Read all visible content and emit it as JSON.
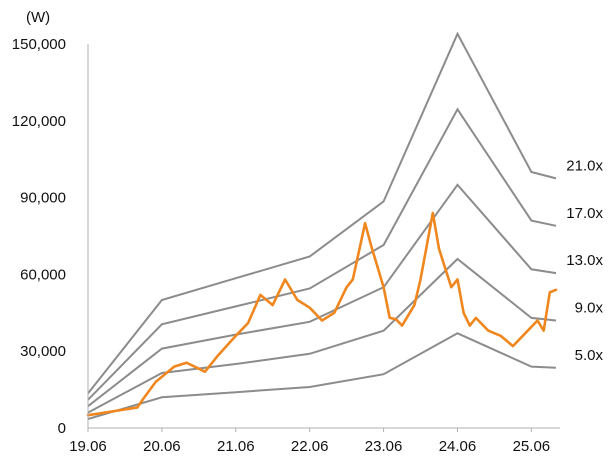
{
  "chart_data": {
    "type": "line",
    "unit_label": "(W)",
    "y_ticks": [
      "150,000",
      "120,000",
      "90,000",
      "60,000",
      "30,000",
      "0"
    ],
    "y_tick_values": [
      150000,
      120000,
      90000,
      60000,
      30000,
      0
    ],
    "x_ticks": [
      "19.06",
      "20.06",
      "21.06",
      "22.06",
      "23.06",
      "24.06",
      "25.06"
    ],
    "ylim": [
      0,
      150000
    ],
    "xlim": [
      "2019-06",
      "2025-10"
    ],
    "grid": false,
    "price_color": "#F0861E",
    "band_color": "#8C8C8C",
    "band_x": [
      "2019-06",
      "2020-06",
      "2021-06",
      "2022-06",
      "2023-06",
      "2024-06",
      "2025-06",
      "2025-10"
    ],
    "bands": [
      {
        "name": "5.0x",
        "values": [
          3500,
          12000,
          14000,
          16000,
          21000,
          37000,
          24000,
          23500
        ]
      },
      {
        "name": "9.0x",
        "values": [
          6000,
          21500,
          25000,
          29000,
          38000,
          66000,
          43000,
          42000
        ]
      },
      {
        "name": "13.0x",
        "values": [
          8500,
          31000,
          36500,
          41500,
          55000,
          95000,
          62000,
          60500
        ]
      },
      {
        "name": "17.0x",
        "values": [
          11000,
          40500,
          47500,
          54500,
          71500,
          124500,
          81000,
          79000
        ]
      },
      {
        "name": "21.0x",
        "values": [
          13500,
          50000,
          58500,
          67000,
          88500,
          154000,
          100000,
          97500
        ]
      }
    ],
    "price": {
      "x": [
        "2019-06",
        "2019-10",
        "2020-02",
        "2020-03",
        "2020-05",
        "2020-08",
        "2020-10",
        "2021-01",
        "2021-03",
        "2021-06",
        "2021-08",
        "2021-10",
        "2021-12",
        "2022-02",
        "2022-04",
        "2022-06",
        "2022-08",
        "2022-10",
        "2022-12",
        "2023-01",
        "2023-03",
        "2023-04",
        "2023-06",
        "2023-07",
        "2023-08",
        "2023-09",
        "2023-11",
        "2023-12",
        "2024-02",
        "2024-03",
        "2024-05",
        "2024-06",
        "2024-07",
        "2024-08",
        "2024-09",
        "2024-11",
        "2025-01",
        "2025-03",
        "2025-05",
        "2025-07",
        "2025-08",
        "2025-09",
        "2025-10"
      ],
      "values": [
        5000,
        6500,
        8000,
        11500,
        18000,
        24000,
        25500,
        22000,
        28000,
        36000,
        41000,
        52000,
        48000,
        58000,
        50000,
        47000,
        42000,
        45000,
        55000,
        58000,
        80000,
        71000,
        55000,
        43000,
        42500,
        40000,
        48000,
        58000,
        84000,
        70000,
        55000,
        58000,
        45000,
        40000,
        43000,
        38000,
        36000,
        32000,
        37000,
        42000,
        38000,
        53000,
        54000
      ]
    }
  }
}
